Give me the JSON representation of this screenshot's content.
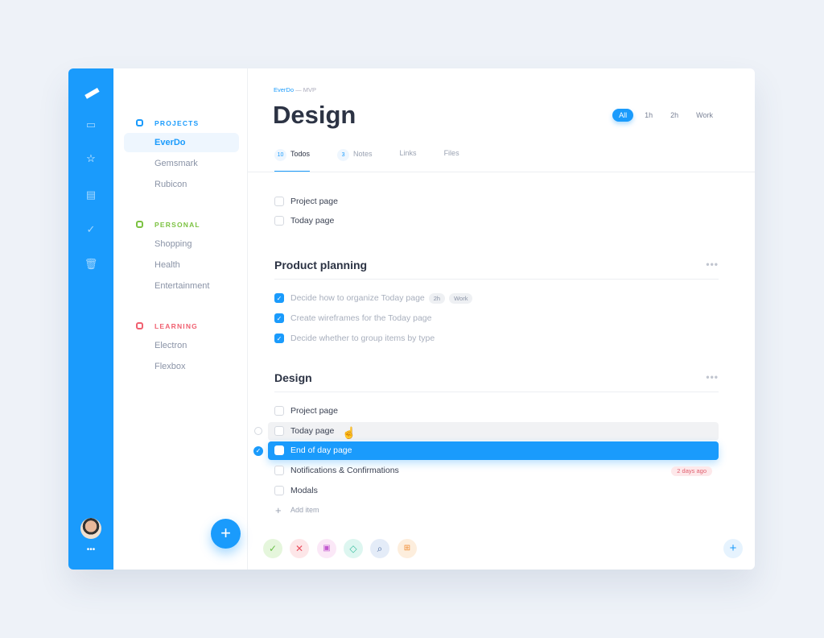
{
  "breadcrumb": {
    "project": "EverDo",
    "separator": "—",
    "sub": "MVP"
  },
  "title": "Design",
  "filters": [
    "All",
    "1h",
    "2h",
    "Work"
  ],
  "tabs": [
    {
      "count": "10",
      "label": "Todos"
    },
    {
      "count": "3",
      "label": "Notes"
    },
    {
      "label": "Links"
    },
    {
      "label": "Files"
    }
  ],
  "sidebar": {
    "groups": [
      {
        "label": "PROJECTS",
        "color": "#1a9bfc",
        "items": [
          "EverDo",
          "Gemsmark",
          "Rubicon"
        ]
      },
      {
        "label": "PERSONAL",
        "color": "#7cc242",
        "items": [
          "Shopping",
          "Health",
          "Entertainment"
        ]
      },
      {
        "label": "LEARNING",
        "color": "#f06070",
        "items": [
          "Electron",
          "Flexbox"
        ]
      }
    ],
    "add_label": "+"
  },
  "loose_items": [
    "Project page",
    "Today page"
  ],
  "sections": [
    {
      "title": "Product planning",
      "items": [
        {
          "text": "Decide how to organize Today page",
          "tags": [
            "2h",
            "Work"
          ]
        },
        {
          "text": "Create wireframes for the Today page"
        },
        {
          "text": "Decide whether to group items by type"
        }
      ]
    },
    {
      "title": "Design",
      "items": [
        {
          "text": "Project page"
        },
        {
          "text": "Today page"
        },
        {
          "text": "End of day page"
        },
        {
          "text": "Notifications & Confirmations",
          "due": "2 days ago"
        },
        {
          "text": "Modals"
        }
      ]
    }
  ],
  "add_item": "Add item",
  "more": "•••",
  "add": "+"
}
